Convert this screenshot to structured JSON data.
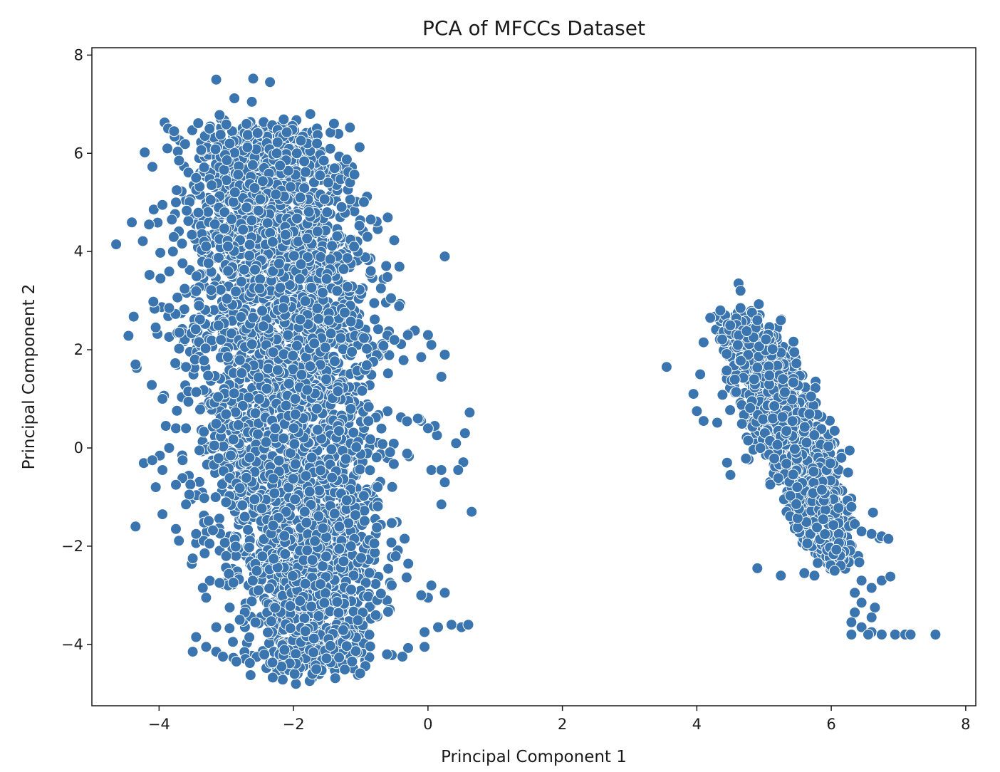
{
  "chart_data": {
    "type": "scatter",
    "title": "PCA of MFCCs Dataset",
    "xlabel": "Principal Component 1",
    "ylabel": "Principal Component 2",
    "xlim": [
      -5,
      8.15
    ],
    "ylim": [
      -5.25,
      8.15
    ],
    "xticks": [
      -4,
      -2,
      0,
      2,
      4,
      6,
      8
    ],
    "yticks": [
      -4,
      -2,
      0,
      2,
      4,
      6,
      8
    ],
    "xtick_labels": [
      "−4",
      "−2",
      "0",
      "2",
      "4",
      "6",
      "8"
    ],
    "ytick_labels": [
      "−4",
      "−2",
      "0",
      "2",
      "4",
      "6",
      "8"
    ],
    "grid": false,
    "legend": "none",
    "marker_color": "#3a75b0",
    "marker_edge_color": "#ffffff",
    "series": [
      {
        "points": [
          [
            -3.15,
            7.5
          ],
          [
            -2.6,
            7.52
          ],
          [
            -2.35,
            7.45
          ],
          [
            -2.88,
            7.12
          ],
          [
            -2.62,
            7.05
          ],
          [
            -1.75,
            6.8
          ],
          [
            -3.1,
            6.78
          ],
          [
            -2.7,
            6.6
          ],
          [
            -3.25,
            6.5
          ],
          [
            -1.65,
            6.2
          ],
          [
            -2.95,
            6.2
          ],
          [
            -2.25,
            6.0
          ],
          [
            -1.95,
            6.0
          ],
          [
            -2.2,
            5.75
          ],
          [
            -1.55,
            5.85
          ],
          [
            -1.9,
            5.1
          ],
          [
            -1.5,
            4.8
          ],
          [
            -0.85,
            4.65
          ],
          [
            -0.9,
            4.3
          ],
          [
            -4.15,
            4.55
          ],
          [
            -3.95,
            4.95
          ],
          [
            -3.75,
            5.0
          ],
          [
            -3.45,
            5.5
          ],
          [
            0.25,
            3.9
          ],
          [
            -3.98,
            3.45
          ],
          [
            -3.85,
            2.85
          ],
          [
            -3.7,
            2.35
          ],
          [
            -3.6,
            1.65
          ],
          [
            -4.35,
            1.7
          ],
          [
            -3.95,
            1.0
          ],
          [
            -3.9,
            0.45
          ],
          [
            -3.75,
            0.4
          ],
          [
            -3.6,
            0.4
          ],
          [
            -3.4,
            -0.05
          ],
          [
            -3.85,
            0.0
          ],
          [
            -3.65,
            -0.25
          ],
          [
            -4.1,
            -0.25
          ],
          [
            -3.95,
            -0.45
          ],
          [
            -3.75,
            -0.75
          ],
          [
            -4.05,
            -0.8
          ],
          [
            -3.55,
            -0.95
          ],
          [
            -3.95,
            -1.35
          ],
          [
            -3.6,
            -1.15
          ],
          [
            -3.75,
            -1.65
          ],
          [
            -4.35,
            -1.6
          ],
          [
            -3.45,
            -1.75
          ],
          [
            -3.25,
            -1.95
          ],
          [
            -3.5,
            -2.25
          ],
          [
            -3.35,
            -2.85
          ],
          [
            -3.3,
            -3.05
          ],
          [
            -3.1,
            -2.75
          ],
          [
            -2.95,
            -3.25
          ],
          [
            -2.8,
            -3.5
          ],
          [
            -3.15,
            -3.65
          ],
          [
            -3.45,
            -3.85
          ],
          [
            -3.5,
            -4.15
          ],
          [
            -3.3,
            -4.05
          ],
          [
            -3.15,
            -4.15
          ],
          [
            -3.05,
            -4.25
          ],
          [
            -2.85,
            -4.35
          ],
          [
            -2.65,
            -4.38
          ],
          [
            -0.38,
            -4.25
          ],
          [
            -0.05,
            -4.05
          ],
          [
            -0.05,
            -3.75
          ],
          [
            0.15,
            -3.65
          ],
          [
            0.35,
            -3.6
          ],
          [
            0.5,
            -3.65
          ],
          [
            0.6,
            -3.6
          ],
          [
            0.25,
            -2.95
          ],
          [
            0.05,
            -2.8
          ],
          [
            0.0,
            -3.05
          ],
          [
            -0.1,
            -3.0
          ],
          [
            0.65,
            -1.3
          ],
          [
            0.2,
            -1.15
          ],
          [
            0.25,
            -0.7
          ],
          [
            0.45,
            -0.45
          ],
          [
            0.05,
            -0.45
          ],
          [
            0.2,
            -0.45
          ],
          [
            0.62,
            0.72
          ],
          [
            0.55,
            0.3
          ],
          [
            0.1,
            0.45
          ],
          [
            0.0,
            0.4
          ],
          [
            -0.15,
            0.6
          ],
          [
            0.2,
            1.45
          ],
          [
            0.25,
            1.9
          ],
          [
            0.05,
            2.1
          ],
          [
            0.0,
            2.3
          ],
          [
            -0.1,
            1.85
          ],
          [
            -0.3,
            2.3
          ],
          [
            -0.5,
            2.2
          ],
          [
            -0.7,
            3.25
          ],
          [
            -0.8,
            2.95
          ],
          [
            -1.1,
            4.1
          ],
          [
            -0.55,
            3.05
          ],
          [
            3.55,
            1.65
          ],
          [
            5.25,
            2.6
          ],
          [
            4.9,
            2.6
          ],
          [
            4.62,
            3.35
          ],
          [
            4.65,
            3.2
          ],
          [
            4.65,
            2.85
          ],
          [
            4.35,
            2.8
          ],
          [
            4.2,
            2.65
          ],
          [
            5.45,
            1.95
          ],
          [
            5.7,
            1.05
          ],
          [
            6.05,
            0.35
          ],
          [
            6.15,
            -0.2
          ],
          [
            6.25,
            -0.5
          ],
          [
            6.3,
            -1.2
          ],
          [
            6.35,
            -1.55
          ],
          [
            6.45,
            -1.7
          ],
          [
            6.6,
            -1.75
          ],
          [
            6.75,
            -1.8
          ],
          [
            6.85,
            -1.85
          ],
          [
            4.9,
            -2.45
          ],
          [
            5.25,
            -2.6
          ],
          [
            5.6,
            -2.55
          ],
          [
            5.75,
            -2.6
          ],
          [
            6.05,
            -2.5
          ],
          [
            6.45,
            -2.7
          ],
          [
            6.6,
            -2.85
          ],
          [
            6.75,
            -2.7
          ],
          [
            6.88,
            -2.62
          ],
          [
            6.35,
            -2.95
          ],
          [
            6.45,
            -3.15
          ],
          [
            6.65,
            -3.25
          ],
          [
            6.35,
            -3.35
          ],
          [
            6.6,
            -3.45
          ],
          [
            6.3,
            -3.55
          ],
          [
            6.45,
            -3.65
          ],
          [
            6.6,
            -3.75
          ],
          [
            6.3,
            -3.8
          ],
          [
            6.55,
            -3.8
          ],
          [
            6.75,
            -3.8
          ],
          [
            6.95,
            -3.8
          ],
          [
            7.1,
            -3.8
          ],
          [
            7.18,
            -3.8
          ],
          [
            7.55,
            -3.8
          ],
          [
            4.5,
            -0.55
          ],
          [
            4.45,
            -0.3
          ],
          [
            3.95,
            1.1
          ],
          [
            4.05,
            1.5
          ],
          [
            4.1,
            2.15
          ],
          [
            4.0,
            0.75
          ],
          [
            4.1,
            0.55
          ]
        ],
        "clusters": [
          {
            "center": [
              -2.0,
              0.5
            ],
            "spine_upper": [
              -2.5,
              6.5
            ],
            "spine_lower": [
              -1.7,
              -4.5
            ],
            "spread": 1.45,
            "count": 3600
          },
          {
            "center": [
              5.3,
              0.1
            ],
            "spine_upper": [
              4.7,
              2.6
            ],
            "spine_lower": [
              6.1,
              -2.3
            ],
            "spread": 0.55,
            "count": 1300
          }
        ]
      }
    ]
  }
}
